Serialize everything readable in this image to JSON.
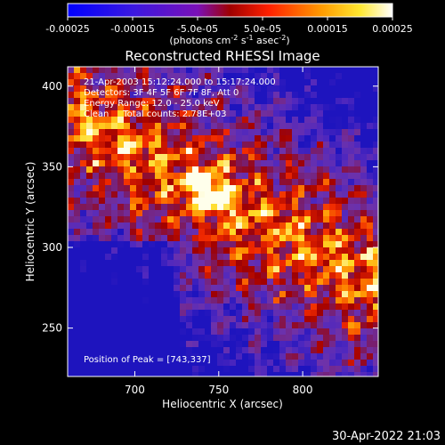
{
  "colorbar": {
    "ticks": [
      "-0.00025",
      "-0.00015",
      "-5.0e-05",
      "5.0e-05",
      "0.00015",
      "0.00025"
    ],
    "tick_values": [
      -0.00025,
      -0.00015,
      -5e-05,
      5e-05,
      0.00015,
      0.00025
    ],
    "units_prefix": "(photons cm",
    "units_exp1": "-2",
    "units_mid": " s",
    "units_exp2": "-1",
    "units_mid2": " asec",
    "units_exp3": "-2",
    "units_suffix": ")"
  },
  "annotations": {
    "time_range": "21-Apr-2003 15:12:24.000 to 15:17:24.000",
    "detectors": "Detectors: 3F 4F 5F 6F 7F 8F, Att 0",
    "energy": "Energy Range: 12.0 - 25.0 keV",
    "algorithm": "Clean     Total counts: 2.78E+03",
    "peak": "Position of Peak = [743,337]"
  },
  "footer": {
    "timestamp": "30-Apr-2022 21:03"
  },
  "colors": {
    "background": "#000000",
    "text": "#ffffff"
  },
  "chart_data": {
    "type": "heatmap",
    "title": "Reconstructed RHESSI Image",
    "xlabel": "Heliocentric X (arcsec)",
    "ylabel": "Heliocentric Y (arcsec)",
    "xlim": [
      660,
      845
    ],
    "ylim": [
      220,
      412
    ],
    "xticks": [
      700,
      750,
      800
    ],
    "yticks": [
      250,
      300,
      350,
      400
    ],
    "zlim": [
      -0.00025,
      0.00025
    ],
    "colormap": "RHESSI blue-purple-red-yellow-white",
    "peak": [
      743,
      337
    ]
  }
}
